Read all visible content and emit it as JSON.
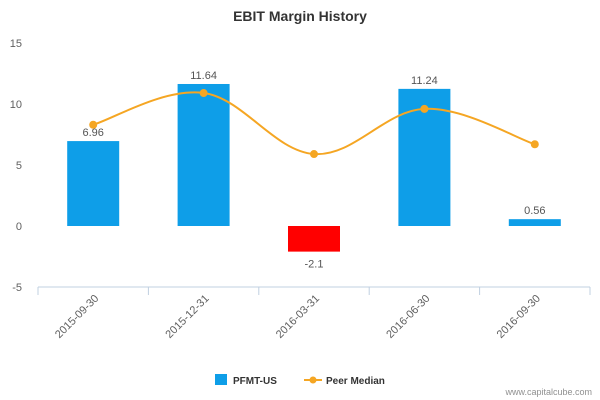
{
  "chart_data": {
    "type": "bar",
    "title": "EBIT Margin History",
    "categories": [
      "2015-09-30",
      "2015-12-31",
      "2016-03-31",
      "2016-06-30",
      "2016-09-30"
    ],
    "series": [
      {
        "name": "PFMT-US",
        "kind": "bar",
        "values": [
          6.96,
          11.64,
          -2.1,
          11.24,
          0.56
        ],
        "color": "#0e9ee8",
        "negative_color": "#ff0000",
        "data_labels": [
          "6.96",
          "11.64",
          "-2.1",
          "11.24",
          "0.56"
        ]
      },
      {
        "name": "Peer Median",
        "kind": "line",
        "values": [
          8.3,
          10.9,
          5.9,
          9.6,
          6.7
        ],
        "color": "#f5a623"
      }
    ],
    "ylim": [
      -5,
      15
    ],
    "yticks": [
      "-5",
      "0",
      "5",
      "10",
      "15"
    ],
    "grid": false,
    "legend_position": "bottom-center"
  },
  "credit": "www.capitalcube.com"
}
